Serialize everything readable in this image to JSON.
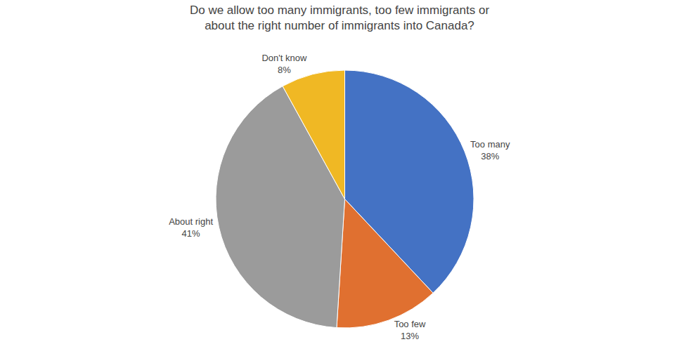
{
  "chart_data": {
    "type": "pie",
    "title": "Do we allow too many immigrants, too few immigrants or\nabout the right number of immigrants into Canada?",
    "categories": [
      "Too many",
      "Too few",
      "About right",
      "Don't know"
    ],
    "values": [
      38,
      13,
      41,
      8
    ],
    "value_labels": [
      "38%",
      "13%",
      "41%",
      "8%"
    ],
    "colors": [
      "#4472C4",
      "#E07030",
      "#9B9B9B",
      "#F0B824"
    ],
    "data_labels": true,
    "legend": false
  }
}
